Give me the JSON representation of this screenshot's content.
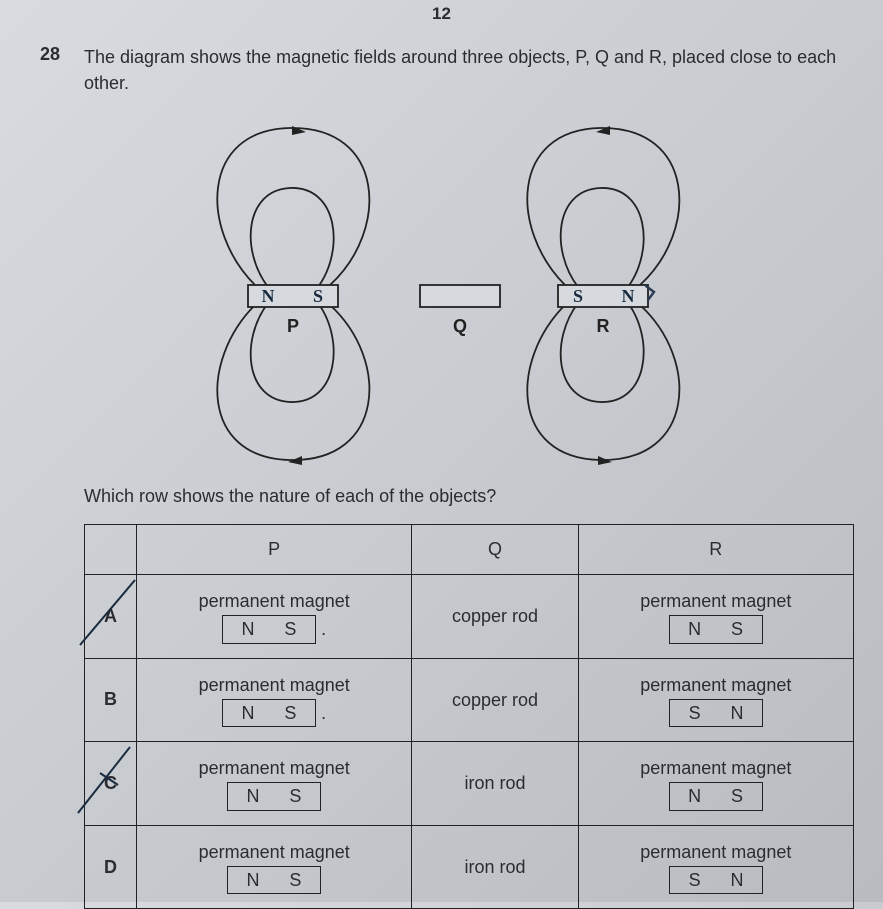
{
  "page_number": "12",
  "question_number": "28",
  "question_text": "The diagram shows the magnetic fields around three objects, P, Q and R, placed close to each other.",
  "sub_question": "Which row shows the nature of each of the objects?",
  "diagram": {
    "objects": {
      "P": {
        "label": "P",
        "left_pole_hand": "N",
        "right_pole_hand": "S"
      },
      "Q": {
        "label": "Q"
      },
      "R": {
        "label": "R",
        "left_pole_hand": "S",
        "right_pole_hand": "N"
      }
    }
  },
  "table": {
    "headers": {
      "col0": "",
      "P": "P",
      "Q": "Q",
      "R": "R"
    },
    "rows": [
      {
        "label": "A",
        "crossed": true,
        "P": {
          "text": "permanent magnet",
          "left": "N",
          "right": "S",
          "trail_dot": true
        },
        "Q": {
          "text": "copper rod"
        },
        "R": {
          "text": "permanent magnet",
          "left": "N",
          "right": "S"
        }
      },
      {
        "label": "B",
        "crossed": false,
        "P": {
          "text": "permanent magnet",
          "left": "N",
          "right": "S",
          "trail_dot": true
        },
        "Q": {
          "text": "copper rod"
        },
        "R": {
          "text": "permanent magnet",
          "left": "S",
          "right": "N"
        }
      },
      {
        "label": "C",
        "crossed": true,
        "P": {
          "text": "permanent magnet",
          "left": "N",
          "right": "S"
        },
        "Q": {
          "text": "iron rod"
        },
        "R": {
          "text": "permanent magnet",
          "left": "N",
          "right": "S"
        }
      },
      {
        "label": "D",
        "crossed": false,
        "P": {
          "text": "permanent magnet",
          "left": "N",
          "right": "S"
        },
        "Q": {
          "text": "iron rod"
        },
        "R": {
          "text": "permanent magnet",
          "left": "S",
          "right": "N"
        }
      }
    ]
  },
  "colors": {
    "ink": "#222222",
    "hand": "#1a2b3f",
    "paper_light": "#d8dce0",
    "paper_dark": "#b8bcc0"
  }
}
